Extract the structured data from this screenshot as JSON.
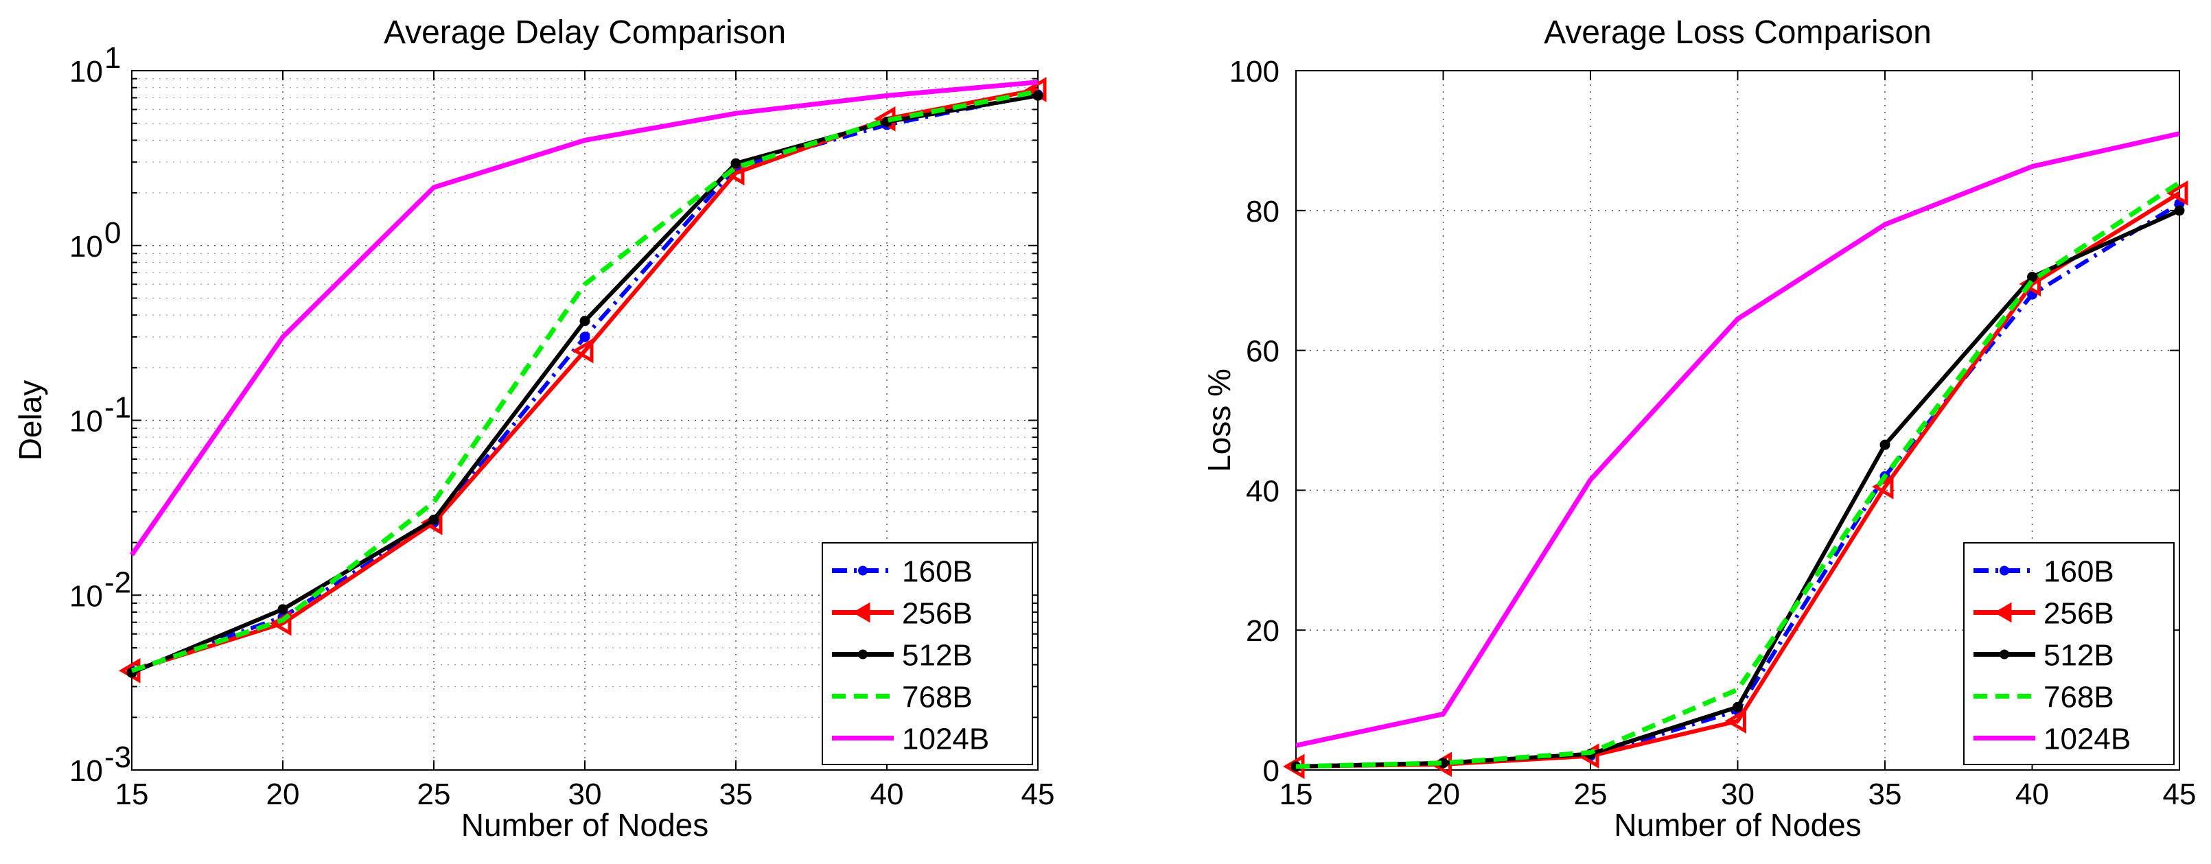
{
  "chart_data": [
    {
      "type": "line",
      "title": "Average Delay Comparison",
      "xlabel": "Number of Nodes",
      "ylabel": "Delay",
      "yscale": "log",
      "xlim": [
        15,
        45
      ],
      "ylim": [
        0.001,
        10
      ],
      "xticks": [
        "15",
        "20",
        "25",
        "30",
        "35",
        "40",
        "45"
      ],
      "yticks": [
        {
          "base": "10",
          "exp": "-3"
        },
        {
          "base": "10",
          "exp": "-2"
        },
        {
          "base": "10",
          "exp": "-1"
        },
        {
          "base": "10",
          "exp": "0"
        },
        {
          "base": "10",
          "exp": "1"
        }
      ],
      "grid": true,
      "legend_position": "bottom-right",
      "x": [
        15,
        20,
        25,
        30,
        35,
        40,
        45
      ],
      "series": [
        {
          "name": "160B",
          "color": "#0000ff",
          "style": "dashdot",
          "marker": "dot",
          "values": [
            0.0037,
            0.0075,
            0.026,
            0.3,
            2.8,
            4.9,
            7.3
          ]
        },
        {
          "name": "256B",
          "color": "#ff0000",
          "style": "solid",
          "marker": "triangle-left",
          "values": [
            0.0037,
            0.0069,
            0.026,
            0.25,
            2.6,
            5.3,
            7.8
          ]
        },
        {
          "name": "512B",
          "color": "#000000",
          "style": "solid",
          "marker": "dot",
          "values": [
            0.0036,
            0.0083,
            0.027,
            0.37,
            2.95,
            5.1,
            7.2
          ]
        },
        {
          "name": "768B",
          "color": "#00ee00",
          "style": "dashed",
          "marker": "none",
          "values": [
            0.0037,
            0.0072,
            0.034,
            0.6,
            2.8,
            5.2,
            7.6
          ]
        },
        {
          "name": "1024B",
          "color": "#ff00ff",
          "style": "solid",
          "marker": "none",
          "values": [
            0.017,
            0.3,
            2.15,
            4.0,
            5.7,
            7.2,
            8.6
          ]
        }
      ]
    },
    {
      "type": "line",
      "title": "Average Loss Comparison",
      "xlabel": "Number of Nodes",
      "ylabel": "Loss %",
      "yscale": "linear",
      "xlim": [
        15,
        45
      ],
      "ylim": [
        0,
        100
      ],
      "xticks": [
        "15",
        "20",
        "25",
        "30",
        "35",
        "40",
        "45"
      ],
      "yticks": [
        "0",
        "20",
        "40",
        "60",
        "80",
        "100"
      ],
      "grid": true,
      "legend_position": "bottom-right",
      "x": [
        15,
        20,
        25,
        30,
        35,
        40,
        45
      ],
      "series": [
        {
          "name": "160B",
          "color": "#0000ff",
          "style": "dashdot",
          "marker": "dot",
          "values": [
            0.5,
            1.0,
            2.0,
            8.5,
            42,
            68,
            81
          ]
        },
        {
          "name": "256B",
          "color": "#ff0000",
          "style": "solid",
          "marker": "triangle-left",
          "values": [
            0.5,
            0.8,
            2.0,
            7.0,
            40.5,
            69.5,
            82.5
          ]
        },
        {
          "name": "512B",
          "color": "#000000",
          "style": "solid",
          "marker": "dot",
          "values": [
            0.5,
            1.0,
            2.3,
            9.0,
            46.5,
            70.5,
            80
          ]
        },
        {
          "name": "768B",
          "color": "#00ee00",
          "style": "dashed",
          "marker": "none",
          "values": [
            0.5,
            1.0,
            2.5,
            11.5,
            42,
            70,
            84
          ]
        },
        {
          "name": "1024B",
          "color": "#ff00ff",
          "style": "solid",
          "marker": "none",
          "values": [
            3.5,
            8.0,
            41.5,
            64.5,
            78,
            86.3,
            91
          ]
        }
      ]
    }
  ]
}
